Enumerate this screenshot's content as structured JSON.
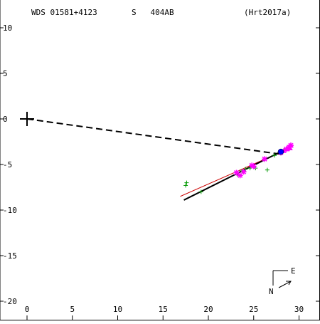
{
  "header": {
    "wds": "WDS 01581+4123",
    "code": "S   404AB",
    "ref": "(Hrt2017a)"
  },
  "compass": {
    "east": "E",
    "north": "N"
  },
  "colors": {
    "axis": "#000000",
    "fit_line": "#000000",
    "reference_line": "#cc0000",
    "green_obs": "#009900",
    "magenta_obs": "#ff00ff",
    "blue_point": "#0000ff",
    "connector": "#000000"
  },
  "chart_data": {
    "type": "scatter",
    "xlim": [
      -2.5,
      32.5
    ],
    "ylim": [
      -21.5,
      12
    ],
    "x_ticks": [
      0,
      5,
      10,
      15,
      20,
      25,
      30
    ],
    "y_ticks": [
      -20,
      -15,
      -10,
      -5,
      0,
      5,
      10
    ],
    "x_tick_labels": [
      "0",
      "5",
      "10",
      "15",
      "20",
      "25",
      "30"
    ],
    "y_tick_labels": [
      "-20",
      "-15",
      "-10",
      "-5",
      "0",
      "5",
      "10"
    ],
    "primary_star": [
      0,
      0
    ],
    "connector_end": [
      28.2,
      -3.9
    ],
    "fit_line": [
      [
        17.3,
        -8.9
      ],
      [
        29.2,
        -3.0
      ]
    ],
    "reference_line": [
      [
        16.9,
        -8.5
      ],
      [
        29.0,
        -3.2
      ]
    ],
    "series": [
      {
        "marker": "plus",
        "color_key": "green_obs",
        "points": [
          [
            17.6,
            -7.0
          ],
          [
            17.5,
            -7.3
          ],
          [
            19.2,
            -8.0
          ],
          [
            23.2,
            -6.1
          ],
          [
            23.7,
            -5.7
          ],
          [
            24.1,
            -5.5
          ],
          [
            24.6,
            -5.4
          ],
          [
            25.2,
            -5.4
          ],
          [
            26.5,
            -5.6
          ],
          [
            27.3,
            -4.0
          ],
          [
            27.9,
            -3.6
          ],
          [
            28.4,
            -3.4
          ]
        ]
      },
      {
        "marker": "asterisk",
        "color_key": "magenta_obs",
        "points": [
          [
            23.1,
            -5.9
          ],
          [
            23.5,
            -6.2
          ],
          [
            23.9,
            -5.8
          ],
          [
            24.8,
            -5.1
          ],
          [
            25.0,
            -5.2
          ],
          [
            26.2,
            -4.4
          ],
          [
            28.0,
            -3.7
          ],
          [
            28.6,
            -3.3
          ],
          [
            28.9,
            -3.1
          ],
          [
            29.1,
            -2.9
          ]
        ]
      },
      {
        "marker": "triangle",
        "color_key": "magenta_obs",
        "points": [
          [
            28.3,
            -3.5
          ],
          [
            28.7,
            -3.3
          ],
          [
            29.0,
            -3.2
          ],
          [
            29.1,
            -2.9
          ]
        ]
      },
      {
        "marker": "dot",
        "color_key": "blue_point",
        "points": [
          [
            28.0,
            -3.6
          ]
        ]
      }
    ]
  }
}
